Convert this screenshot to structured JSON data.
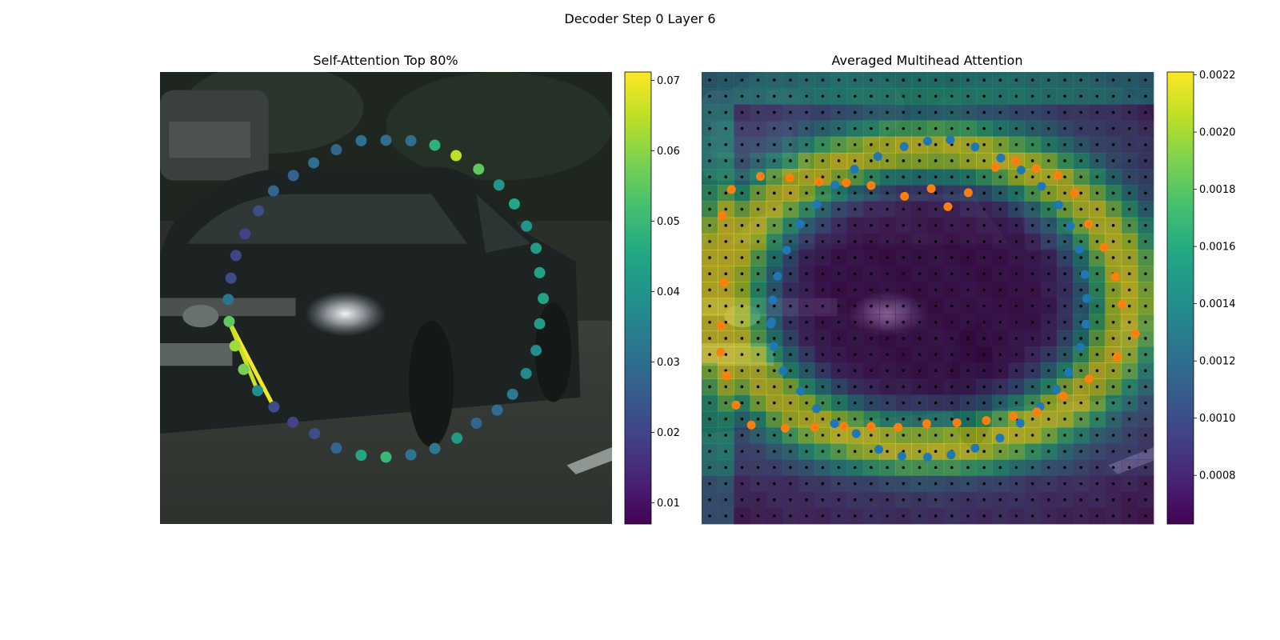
{
  "figure": {
    "title": "Decoder Step 0 Layer 6"
  },
  "colors": {
    "viridis": [
      "#440154",
      "#482475",
      "#414487",
      "#355f8d",
      "#2a788e",
      "#21918c",
      "#22a884",
      "#44bf70",
      "#7ad151",
      "#bddf26",
      "#fde725"
    ],
    "blue_points": "#1f77b4",
    "orange_points": "#ff7f0e",
    "grid_points": "#000000"
  },
  "chart_data": [
    {
      "type": "scatter",
      "title": "Self-Attention Top 80%",
      "background": "photo of a dark station wagon on a road (grayscale-green tint)",
      "colorbar": {
        "min": 0.007,
        "max": 0.0712,
        "ticks": [
          "0.01",
          "0.02",
          "0.03",
          "0.04",
          "0.05",
          "0.06",
          "0.07"
        ],
        "tick_values": [
          0.01,
          0.02,
          0.03,
          0.04,
          0.05,
          0.06,
          0.07
        ]
      },
      "points_xy": [
        [
          0.153,
          0.552
        ],
        [
          0.166,
          0.606
        ],
        [
          0.185,
          0.658
        ],
        [
          0.216,
          0.705
        ],
        [
          0.252,
          0.741
        ],
        [
          0.294,
          0.775
        ],
        [
          0.342,
          0.8
        ],
        [
          0.39,
          0.832
        ],
        [
          0.445,
          0.848
        ],
        [
          0.5,
          0.852
        ],
        [
          0.555,
          0.847
        ],
        [
          0.608,
          0.833
        ],
        [
          0.657,
          0.81
        ],
        [
          0.7,
          0.777
        ],
        [
          0.746,
          0.748
        ],
        [
          0.78,
          0.713
        ],
        [
          0.81,
          0.667
        ],
        [
          0.832,
          0.616
        ],
        [
          0.84,
          0.557
        ],
        [
          0.848,
          0.501
        ],
        [
          0.84,
          0.444
        ],
        [
          0.832,
          0.39
        ],
        [
          0.811,
          0.341
        ],
        [
          0.784,
          0.292
        ],
        [
          0.75,
          0.25
        ],
        [
          0.705,
          0.215
        ],
        [
          0.655,
          0.185
        ],
        [
          0.608,
          0.162
        ],
        [
          0.555,
          0.152
        ],
        [
          0.5,
          0.151
        ],
        [
          0.445,
          0.152
        ],
        [
          0.39,
          0.172
        ],
        [
          0.34,
          0.201
        ],
        [
          0.295,
          0.229
        ],
        [
          0.251,
          0.263
        ],
        [
          0.218,
          0.307
        ],
        [
          0.188,
          0.358
        ],
        [
          0.168,
          0.406
        ],
        [
          0.157,
          0.456
        ],
        [
          0.151,
          0.503
        ]
      ],
      "point_values": [
        0.055,
        0.062,
        0.058,
        0.038,
        0.022,
        0.02,
        0.022,
        0.028,
        0.045,
        0.05,
        0.032,
        0.033,
        0.042,
        0.028,
        0.03,
        0.033,
        0.037,
        0.038,
        0.042,
        0.044,
        0.044,
        0.042,
        0.04,
        0.045,
        0.04,
        0.055,
        0.065,
        0.048,
        0.03,
        0.03,
        0.03,
        0.028,
        0.03,
        0.027,
        0.028,
        0.022,
        0.02,
        0.02,
        0.022,
        0.032
      ],
      "lines": [
        {
          "from": 0,
          "to": 4,
          "value": 0.0705
        },
        {
          "from": 0,
          "to": 3,
          "value": 0.066
        }
      ]
    },
    {
      "type": "heatmap",
      "title": "Averaged Multihead Attention",
      "background": "same car photo overlaid with 28x28 attention grid",
      "grid_size": [
        28,
        28
      ],
      "colorbar": {
        "min": 0.00063,
        "max": 0.00221,
        "ticks": [
          "0.0008",
          "0.0010",
          "0.0012",
          "0.0014",
          "0.0016",
          "0.0018",
          "0.0020",
          "0.0022"
        ],
        "tick_values": [
          0.0008,
          0.001,
          0.0012,
          0.0014,
          0.0016,
          0.0018,
          0.002,
          0.0022
        ]
      },
      "series": [
        {
          "name": "",
          "color": "blue",
          "points_xy": [
            [
              0.155,
              0.553
            ],
            [
              0.16,
              0.607
            ],
            [
              0.18,
              0.661
            ],
            [
              0.219,
              0.706
            ],
            [
              0.254,
              0.745
            ],
            [
              0.294,
              0.778
            ],
            [
              0.342,
              0.8
            ],
            [
              0.392,
              0.835
            ],
            [
              0.443,
              0.85
            ],
            [
              0.5,
              0.852
            ],
            [
              0.552,
              0.847
            ],
            [
              0.605,
              0.832
            ],
            [
              0.66,
              0.81
            ],
            [
              0.705,
              0.777
            ],
            [
              0.749,
              0.74
            ],
            [
              0.785,
              0.702
            ],
            [
              0.812,
              0.664
            ],
            [
              0.838,
              0.609
            ],
            [
              0.85,
              0.558
            ],
            [
              0.852,
              0.501
            ],
            [
              0.848,
              0.448
            ],
            [
              0.836,
              0.392
            ],
            [
              0.816,
              0.341
            ],
            [
              0.79,
              0.294
            ],
            [
              0.752,
              0.253
            ],
            [
              0.707,
              0.217
            ],
            [
              0.662,
              0.19
            ],
            [
              0.605,
              0.166
            ],
            [
              0.55,
              0.15
            ],
            [
              0.5,
              0.153
            ],
            [
              0.448,
              0.165
            ],
            [
              0.39,
              0.187
            ],
            [
              0.338,
              0.215
            ],
            [
              0.295,
              0.25
            ],
            [
              0.255,
              0.293
            ],
            [
              0.218,
              0.336
            ],
            [
              0.188,
              0.394
            ],
            [
              0.168,
              0.452
            ],
            [
              0.157,
              0.504
            ],
            [
              0.153,
              0.558
            ]
          ]
        },
        {
          "name": "",
          "color": "orange",
          "points_xy": [
            [
              0.05,
              0.466
            ],
            [
              0.043,
              0.561
            ],
            [
              0.042,
              0.62
            ],
            [
              0.055,
              0.672
            ],
            [
              0.076,
              0.737
            ],
            [
              0.11,
              0.781
            ],
            [
              0.185,
              0.788
            ],
            [
              0.25,
              0.786
            ],
            [
              0.315,
              0.784
            ],
            [
              0.375,
              0.784
            ],
            [
              0.435,
              0.786
            ],
            [
              0.498,
              0.778
            ],
            [
              0.565,
              0.776
            ],
            [
              0.63,
              0.771
            ],
            [
              0.69,
              0.762
            ],
            [
              0.742,
              0.752
            ],
            [
              0.8,
              0.717
            ],
            [
              0.857,
              0.679
            ],
            [
              0.92,
              0.63
            ],
            [
              0.96,
              0.579
            ],
            [
              0.93,
              0.514
            ],
            [
              0.915,
              0.453
            ],
            [
              0.89,
              0.388
            ],
            [
              0.856,
              0.336
            ],
            [
              0.825,
              0.268
            ],
            [
              0.788,
              0.229
            ],
            [
              0.74,
              0.213
            ],
            [
              0.695,
              0.197
            ],
            [
              0.65,
              0.211
            ],
            [
              0.59,
              0.267
            ],
            [
              0.545,
              0.298
            ],
            [
              0.508,
              0.258
            ],
            [
              0.449,
              0.275
            ],
            [
              0.375,
              0.251
            ],
            [
              0.32,
              0.245
            ],
            [
              0.26,
              0.243
            ],
            [
              0.195,
              0.234
            ],
            [
              0.13,
              0.231
            ],
            [
              0.066,
              0.26
            ],
            [
              0.045,
              0.318
            ]
          ]
        }
      ]
    }
  ]
}
